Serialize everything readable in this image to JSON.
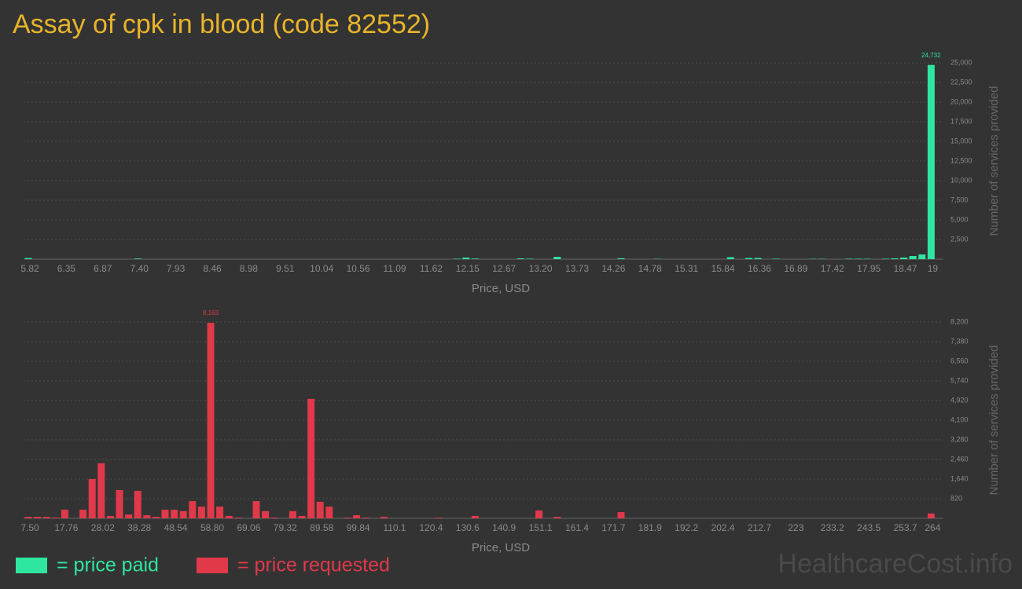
{
  "title": "Assay of cpk in blood (code 82552)",
  "watermark": "HealthcareCost.info",
  "chart_data": [
    {
      "type": "bar",
      "x_label": "Price, USD",
      "y_label": "Number of services provided",
      "grid": true,
      "categories": [
        "5.82",
        null,
        null,
        null,
        "6.35",
        null,
        null,
        null,
        "6.87",
        null,
        null,
        null,
        "7.40",
        null,
        null,
        null,
        "7.93",
        null,
        null,
        null,
        "8.46",
        null,
        null,
        null,
        "8.98",
        null,
        null,
        null,
        "9.51",
        null,
        null,
        null,
        "10.04",
        null,
        null,
        null,
        "10.56",
        null,
        null,
        null,
        "11.09",
        null,
        null,
        null,
        "11.62",
        null,
        null,
        null,
        "12.15",
        null,
        null,
        null,
        "12.67",
        null,
        null,
        null,
        "13.20",
        null,
        null,
        null,
        "13.73",
        null,
        null,
        null,
        "14.26",
        null,
        null,
        null,
        "14.78",
        null,
        null,
        null,
        "15.31",
        null,
        null,
        null,
        "15.84",
        null,
        null,
        null,
        "16.36",
        null,
        null,
        null,
        "16.89",
        null,
        null,
        null,
        "17.42",
        null,
        null,
        null,
        "17.95",
        null,
        null,
        null,
        "18.47",
        null,
        null,
        "19"
      ],
      "series": [
        {
          "name": "= price paid",
          "color": "#2ee6a0",
          "values": [
            150,
            0,
            0,
            0,
            0,
            0,
            0,
            0,
            0,
            0,
            0,
            0,
            80,
            0,
            0,
            0,
            0,
            0,
            0,
            0,
            0,
            0,
            0,
            0,
            0,
            0,
            0,
            0,
            0,
            0,
            0,
            0,
            0,
            0,
            0,
            0,
            0,
            0,
            0,
            0,
            0,
            0,
            0,
            0,
            0,
            0,
            0,
            60,
            200,
            80,
            0,
            0,
            0,
            0,
            100,
            60,
            0,
            0,
            300,
            0,
            0,
            0,
            0,
            0,
            0,
            120,
            0,
            0,
            0,
            40,
            0,
            0,
            0,
            0,
            0,
            0,
            0,
            250,
            0,
            150,
            150,
            0,
            60,
            0,
            0,
            0,
            40,
            40,
            0,
            0,
            60,
            60,
            50,
            0,
            60,
            100,
            200,
            400,
            600,
            24732
          ],
          "value_labels": [
            null,
            null,
            null,
            null,
            null,
            null,
            null,
            null,
            null,
            null,
            null,
            null,
            null,
            null,
            null,
            null,
            null,
            null,
            null,
            null,
            null,
            null,
            null,
            null,
            null,
            null,
            null,
            null,
            null,
            null,
            null,
            null,
            null,
            null,
            null,
            null,
            null,
            null,
            null,
            null,
            null,
            null,
            null,
            null,
            null,
            null,
            null,
            null,
            null,
            null,
            null,
            null,
            null,
            null,
            null,
            null,
            null,
            null,
            null,
            null,
            null,
            null,
            null,
            null,
            null,
            null,
            null,
            null,
            null,
            null,
            null,
            null,
            null,
            null,
            null,
            null,
            null,
            null,
            null,
            null,
            null,
            null,
            null,
            null,
            null,
            null,
            null,
            null,
            null,
            null,
            null,
            null,
            null,
            null,
            null,
            null,
            null,
            null,
            null,
            "24,732"
          ]
        }
      ],
      "ylim": [
        0,
        25000
      ],
      "yticks": [
        {
          "value": 2500,
          "label": "2,500"
        },
        {
          "value": 5000,
          "label": "5,000"
        },
        {
          "value": 7500,
          "label": "7,500"
        },
        {
          "value": 10000,
          "label": "10,000"
        },
        {
          "value": 12500,
          "label": "12,500"
        },
        {
          "value": 15000,
          "label": "15,000"
        },
        {
          "value": 17500,
          "label": "17,500"
        },
        {
          "value": 20000,
          "label": "20,000"
        },
        {
          "value": 22500,
          "label": "22,500"
        },
        {
          "value": 25000,
          "label": "25,000"
        }
      ]
    },
    {
      "type": "bar",
      "x_label": "Price, USD",
      "y_label": "Number of services provided",
      "grid": true,
      "categories": [
        "7.50",
        null,
        null,
        null,
        "17.76",
        null,
        null,
        null,
        "28.02",
        null,
        null,
        null,
        "38.28",
        null,
        null,
        null,
        "48.54",
        null,
        null,
        null,
        "58.80",
        null,
        null,
        null,
        "69.06",
        null,
        null,
        null,
        "79.32",
        null,
        null,
        null,
        "89.58",
        null,
        null,
        null,
        "99.84",
        null,
        null,
        null,
        "110.1",
        null,
        null,
        null,
        "120.4",
        null,
        null,
        null,
        "130.6",
        null,
        null,
        null,
        "140.9",
        null,
        null,
        null,
        "151.1",
        null,
        null,
        null,
        "161.4",
        null,
        null,
        null,
        "171.7",
        null,
        null,
        null,
        "181.9",
        null,
        null,
        null,
        "192.2",
        null,
        null,
        null,
        "202.4",
        null,
        null,
        null,
        "212.7",
        null,
        null,
        null,
        "223",
        null,
        null,
        null,
        "233.2",
        null,
        null,
        null,
        "243.5",
        null,
        null,
        null,
        "253.7",
        null,
        null,
        "264"
      ],
      "series": [
        {
          "name": "= price requested",
          "color": "#e0394a",
          "values": [
            60,
            60,
            60,
            30,
            360,
            0,
            360,
            1640,
            2300,
            100,
            1180,
            160,
            1150,
            130,
            60,
            360,
            360,
            300,
            720,
            490,
            8163,
            490,
            100,
            30,
            0,
            720,
            300,
            30,
            0,
            300,
            100,
            4990,
            690,
            490,
            0,
            30,
            130,
            30,
            0,
            60,
            0,
            0,
            0,
            0,
            0,
            30,
            0,
            0,
            0,
            100,
            0,
            0,
            0,
            0,
            0,
            0,
            330,
            0,
            60,
            0,
            0,
            0,
            0,
            0,
            0,
            260,
            0,
            0,
            0,
            0,
            0,
            0,
            0,
            0,
            0,
            0,
            0,
            0,
            0,
            0,
            0,
            0,
            0,
            0,
            0,
            0,
            0,
            0,
            0,
            0,
            0,
            0,
            0,
            0,
            0,
            0,
            0,
            0,
            0,
            200
          ],
          "value_labels": [
            null,
            null,
            null,
            null,
            null,
            null,
            null,
            null,
            null,
            null,
            null,
            null,
            null,
            null,
            null,
            null,
            null,
            null,
            null,
            null,
            "8,163",
            null,
            null,
            null,
            null,
            null,
            null,
            null,
            null,
            null,
            null,
            null,
            null,
            null,
            null,
            null,
            null,
            null,
            null,
            null,
            null,
            null,
            null,
            null,
            null,
            null,
            null,
            null,
            null,
            null,
            null,
            null,
            null,
            null,
            null,
            null,
            null,
            null,
            null,
            null,
            null,
            null,
            null,
            null,
            null,
            null,
            null,
            null,
            null,
            null,
            null,
            null,
            null,
            null,
            null,
            null,
            null,
            null,
            null,
            null,
            null,
            null,
            null,
            null,
            null,
            null,
            null,
            null,
            null,
            null,
            null,
            null,
            null,
            null,
            null,
            null,
            null,
            null,
            null,
            null
          ]
        }
      ],
      "ylim": [
        0,
        8200
      ],
      "yticks": [
        820,
        {
          "value": 1640,
          "label": "1,640"
        },
        {
          "value": 2460,
          "label": "2,460"
        },
        {
          "value": 3280,
          "label": "3,280"
        },
        {
          "value": 4100,
          "label": "4,100"
        },
        {
          "value": 4920,
          "label": "4,920"
        },
        {
          "value": 5740,
          "label": "5,740"
        },
        {
          "value": 6560,
          "label": "6,560"
        },
        {
          "value": 7380,
          "label": "7,380"
        },
        {
          "value": 8200,
          "label": "8,200"
        }
      ]
    }
  ]
}
